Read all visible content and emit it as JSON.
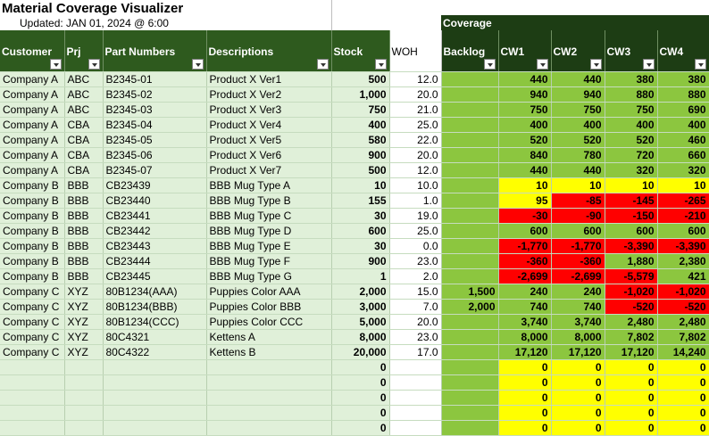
{
  "sheet": {
    "title": "Material Coverage Visualizer",
    "updated": "Updated: JAN 01, 2024 @ 6:00",
    "coverage_label": "Coverage"
  },
  "columns": [
    {
      "key": "customer",
      "label": "Customer",
      "filter": true
    },
    {
      "key": "prj",
      "label": "Prj",
      "filter": true
    },
    {
      "key": "part",
      "label": "Part Numbers",
      "filter": true
    },
    {
      "key": "desc",
      "label": "Descriptions",
      "filter": true
    },
    {
      "key": "stock",
      "label": "Stock",
      "filter": true
    },
    {
      "key": "woh",
      "label": "WOH",
      "filter": false
    },
    {
      "key": "backlog",
      "label": "Backlog",
      "filter": true
    },
    {
      "key": "cw1",
      "label": "CW1",
      "filter": true
    },
    {
      "key": "cw2",
      "label": "CW2",
      "filter": true
    },
    {
      "key": "cw3",
      "label": "CW3",
      "filter": true
    },
    {
      "key": "cw4",
      "label": "CW4",
      "filter": true
    }
  ],
  "colors": {
    "green": "#8cc63f",
    "yellow": "#ffff00",
    "red": "#ff0000",
    "header": "#2e5a1e",
    "coverage_header": "#1d3d14",
    "row_fill": "#e0f0d9"
  },
  "rows": [
    {
      "customer": "Company A",
      "prj": "ABC",
      "part": "B2345-01",
      "desc": "Product X Ver1",
      "stock": "500",
      "woh": "12.0",
      "backlog": "",
      "cw": [
        {
          "v": "440",
          "c": "green"
        },
        {
          "v": "440",
          "c": "green"
        },
        {
          "v": "380",
          "c": "green"
        },
        {
          "v": "380",
          "c": "green"
        }
      ]
    },
    {
      "customer": "Company A",
      "prj": "ABC",
      "part": "B2345-02",
      "desc": "Product X Ver2",
      "stock": "1,000",
      "woh": "20.0",
      "backlog": "",
      "cw": [
        {
          "v": "940",
          "c": "green"
        },
        {
          "v": "940",
          "c": "green"
        },
        {
          "v": "880",
          "c": "green"
        },
        {
          "v": "880",
          "c": "green"
        }
      ]
    },
    {
      "customer": "Company A",
      "prj": "ABC",
      "part": "B2345-03",
      "desc": "Product X Ver3",
      "stock": "750",
      "woh": "21.0",
      "backlog": "",
      "cw": [
        {
          "v": "750",
          "c": "green"
        },
        {
          "v": "750",
          "c": "green"
        },
        {
          "v": "750",
          "c": "green"
        },
        {
          "v": "690",
          "c": "green"
        }
      ]
    },
    {
      "customer": "Company A",
      "prj": "CBA",
      "part": "B2345-04",
      "desc": "Product X Ver4",
      "stock": "400",
      "woh": "25.0",
      "backlog": "",
      "cw": [
        {
          "v": "400",
          "c": "green"
        },
        {
          "v": "400",
          "c": "green"
        },
        {
          "v": "400",
          "c": "green"
        },
        {
          "v": "400",
          "c": "green"
        }
      ]
    },
    {
      "customer": "Company A",
      "prj": "CBA",
      "part": "B2345-05",
      "desc": "Product X Ver5",
      "stock": "580",
      "woh": "22.0",
      "backlog": "",
      "cw": [
        {
          "v": "520",
          "c": "green"
        },
        {
          "v": "520",
          "c": "green"
        },
        {
          "v": "520",
          "c": "green"
        },
        {
          "v": "460",
          "c": "green"
        }
      ]
    },
    {
      "customer": "Company A",
      "prj": "CBA",
      "part": "B2345-06",
      "desc": "Product X Ver6",
      "stock": "900",
      "woh": "20.0",
      "backlog": "",
      "cw": [
        {
          "v": "840",
          "c": "green"
        },
        {
          "v": "780",
          "c": "green"
        },
        {
          "v": "720",
          "c": "green"
        },
        {
          "v": "660",
          "c": "green"
        }
      ]
    },
    {
      "customer": "Company A",
      "prj": "CBA",
      "part": "B2345-07",
      "desc": "Product X Ver7",
      "stock": "500",
      "woh": "12.0",
      "backlog": "",
      "cw": [
        {
          "v": "440",
          "c": "green"
        },
        {
          "v": "440",
          "c": "green"
        },
        {
          "v": "320",
          "c": "green"
        },
        {
          "v": "320",
          "c": "green"
        }
      ]
    },
    {
      "customer": "Company B",
      "prj": "BBB",
      "part": "CB23439",
      "desc": "BBB Mug Type A",
      "stock": "10",
      "woh": "10.0",
      "backlog": "",
      "cw": [
        {
          "v": "10",
          "c": "yellow"
        },
        {
          "v": "10",
          "c": "yellow"
        },
        {
          "v": "10",
          "c": "yellow"
        },
        {
          "v": "10",
          "c": "yellow"
        }
      ]
    },
    {
      "customer": "Company B",
      "prj": "BBB",
      "part": "CB23440",
      "desc": "BBB Mug Type B",
      "stock": "155",
      "woh": "1.0",
      "backlog": "",
      "cw": [
        {
          "v": "95",
          "c": "yellow"
        },
        {
          "v": "-85",
          "c": "red"
        },
        {
          "v": "-145",
          "c": "red"
        },
        {
          "v": "-265",
          "c": "red"
        }
      ]
    },
    {
      "customer": "Company B",
      "prj": "BBB",
      "part": "CB23441",
      "desc": "BBB Mug Type C",
      "stock": "30",
      "woh": "19.0",
      "backlog": "",
      "cw": [
        {
          "v": "-30",
          "c": "red"
        },
        {
          "v": "-90",
          "c": "red"
        },
        {
          "v": "-150",
          "c": "red"
        },
        {
          "v": "-210",
          "c": "red"
        }
      ]
    },
    {
      "customer": "Company B",
      "prj": "BBB",
      "part": "CB23442",
      "desc": "BBB Mug Type D",
      "stock": "600",
      "woh": "25.0",
      "backlog": "",
      "cw": [
        {
          "v": "600",
          "c": "green"
        },
        {
          "v": "600",
          "c": "green"
        },
        {
          "v": "600",
          "c": "green"
        },
        {
          "v": "600",
          "c": "green"
        }
      ]
    },
    {
      "customer": "Company B",
      "prj": "BBB",
      "part": "CB23443",
      "desc": "BBB Mug Type E",
      "stock": "30",
      "woh": "0.0",
      "backlog": "",
      "cw": [
        {
          "v": "-1,770",
          "c": "red"
        },
        {
          "v": "-1,770",
          "c": "red"
        },
        {
          "v": "-3,390",
          "c": "red"
        },
        {
          "v": "-3,390",
          "c": "red"
        }
      ]
    },
    {
      "customer": "Company B",
      "prj": "BBB",
      "part": "CB23444",
      "desc": "BBB Mug Type F",
      "stock": "900",
      "woh": "23.0",
      "backlog": "",
      "cw": [
        {
          "v": "-360",
          "c": "red"
        },
        {
          "v": "-360",
          "c": "red"
        },
        {
          "v": "1,880",
          "c": "green"
        },
        {
          "v": "2,380",
          "c": "green"
        }
      ]
    },
    {
      "customer": "Company B",
      "prj": "BBB",
      "part": "CB23445",
      "desc": "BBB Mug Type G",
      "stock": "1",
      "woh": "2.0",
      "backlog": "",
      "cw": [
        {
          "v": "-2,699",
          "c": "red"
        },
        {
          "v": "-2,699",
          "c": "red"
        },
        {
          "v": "-5,579",
          "c": "red"
        },
        {
          "v": "421",
          "c": "green"
        }
      ]
    },
    {
      "customer": "Company C",
      "prj": "XYZ",
      "part": "80B1234(AAA)",
      "desc": "Puppies Color AAA",
      "stock": "2,000",
      "woh": "15.0",
      "backlog": "1,500",
      "cw": [
        {
          "v": "240",
          "c": "green"
        },
        {
          "v": "240",
          "c": "green"
        },
        {
          "v": "-1,020",
          "c": "red"
        },
        {
          "v": "-1,020",
          "c": "red"
        }
      ]
    },
    {
      "customer": "Company C",
      "prj": "XYZ",
      "part": "80B1234(BBB)",
      "desc": "Puppies Color BBB",
      "stock": "3,000",
      "woh": "7.0",
      "backlog": "2,000",
      "cw": [
        {
          "v": "740",
          "c": "green"
        },
        {
          "v": "740",
          "c": "green"
        },
        {
          "v": "-520",
          "c": "red"
        },
        {
          "v": "-520",
          "c": "red"
        }
      ]
    },
    {
      "customer": "Company C",
      "prj": "XYZ",
      "part": "80B1234(CCC)",
      "desc": "Puppies Color CCC",
      "stock": "5,000",
      "woh": "20.0",
      "backlog": "",
      "cw": [
        {
          "v": "3,740",
          "c": "green"
        },
        {
          "v": "3,740",
          "c": "green"
        },
        {
          "v": "2,480",
          "c": "green"
        },
        {
          "v": "2,480",
          "c": "green"
        }
      ]
    },
    {
      "customer": "Company C",
      "prj": "XYZ",
      "part": "80C4321",
      "desc": "Kettens A",
      "stock": "8,000",
      "woh": "23.0",
      "backlog": "",
      "cw": [
        {
          "v": "8,000",
          "c": "green"
        },
        {
          "v": "8,000",
          "c": "green"
        },
        {
          "v": "7,802",
          "c": "green"
        },
        {
          "v": "7,802",
          "c": "green"
        }
      ]
    },
    {
      "customer": "Company C",
      "prj": "XYZ",
      "part": "80C4322",
      "desc": "Kettens B",
      "stock": "20,000",
      "woh": "17.0",
      "backlog": "",
      "cw": [
        {
          "v": "17,120",
          "c": "green"
        },
        {
          "v": "17,120",
          "c": "green"
        },
        {
          "v": "17,120",
          "c": "green"
        },
        {
          "v": "14,240",
          "c": "green"
        }
      ]
    },
    {
      "customer": "",
      "prj": "",
      "part": "",
      "desc": "",
      "stock": "0",
      "woh": "",
      "backlog": "",
      "cw": [
        {
          "v": "0",
          "c": "yellow"
        },
        {
          "v": "0",
          "c": "yellow"
        },
        {
          "v": "0",
          "c": "yellow"
        },
        {
          "v": "0",
          "c": "yellow"
        }
      ]
    },
    {
      "customer": "",
      "prj": "",
      "part": "",
      "desc": "",
      "stock": "0",
      "woh": "",
      "backlog": "",
      "cw": [
        {
          "v": "0",
          "c": "yellow"
        },
        {
          "v": "0",
          "c": "yellow"
        },
        {
          "v": "0",
          "c": "yellow"
        },
        {
          "v": "0",
          "c": "yellow"
        }
      ]
    },
    {
      "customer": "",
      "prj": "",
      "part": "",
      "desc": "",
      "stock": "0",
      "woh": "",
      "backlog": "",
      "cw": [
        {
          "v": "0",
          "c": "yellow"
        },
        {
          "v": "0",
          "c": "yellow"
        },
        {
          "v": "0",
          "c": "yellow"
        },
        {
          "v": "0",
          "c": "yellow"
        }
      ]
    },
    {
      "customer": "",
      "prj": "",
      "part": "",
      "desc": "",
      "stock": "0",
      "woh": "",
      "backlog": "",
      "cw": [
        {
          "v": "0",
          "c": "yellow"
        },
        {
          "v": "0",
          "c": "yellow"
        },
        {
          "v": "0",
          "c": "yellow"
        },
        {
          "v": "0",
          "c": "yellow"
        }
      ]
    },
    {
      "customer": "",
      "prj": "",
      "part": "",
      "desc": "",
      "stock": "0",
      "woh": "",
      "backlog": "",
      "cw": [
        {
          "v": "0",
          "c": "yellow"
        },
        {
          "v": "0",
          "c": "yellow"
        },
        {
          "v": "0",
          "c": "yellow"
        },
        {
          "v": "0",
          "c": "yellow"
        }
      ]
    }
  ]
}
